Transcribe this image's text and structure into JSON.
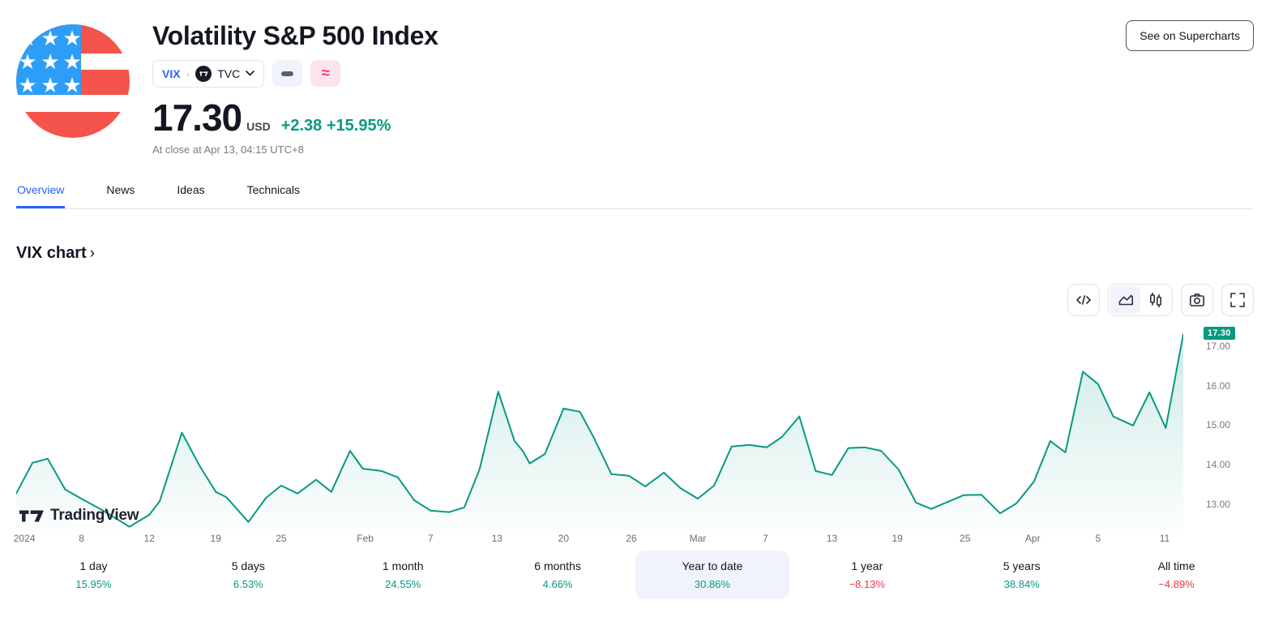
{
  "header": {
    "title": "Volatility S&P 500 Index",
    "symbol": "VIX",
    "separator": "·",
    "exchange": "TVC",
    "price": "17.30",
    "currency": "USD",
    "change": "+2.38",
    "change_pct": "+15.95%",
    "status_line": "At close at Apr 13, 04:15 UTC+8",
    "supercharts_button": "See on Supercharts"
  },
  "icons": {
    "logo": "us-flag-icon",
    "exchange_logo": "tradingview-logo-icon",
    "market_status": "minus-icon",
    "delayed_data": "approx-icon",
    "approx_glyph": "≈",
    "toolbar": [
      "code-icon",
      "area-chart-icon",
      "candlestick-icon",
      "camera-icon",
      "fullscreen-icon"
    ]
  },
  "tabs": [
    {
      "label": "Overview",
      "active": true
    },
    {
      "label": "News",
      "active": false
    },
    {
      "label": "Ideas",
      "active": false
    },
    {
      "label": "Technicals",
      "active": false
    }
  ],
  "section": {
    "title": "VIX chart",
    "chevron": "›"
  },
  "watermark": {
    "text": "TradingView"
  },
  "ranges": [
    {
      "label": "1 day",
      "change": "15.95%",
      "direction": "up",
      "selected": false
    },
    {
      "label": "5 days",
      "change": "6.53%",
      "direction": "up",
      "selected": false
    },
    {
      "label": "1 month",
      "change": "24.55%",
      "direction": "up",
      "selected": false
    },
    {
      "label": "6 months",
      "change": "4.66%",
      "direction": "up",
      "selected": false
    },
    {
      "label": "Year to date",
      "change": "30.86%",
      "direction": "up",
      "selected": true
    },
    {
      "label": "1 year",
      "change": "−8.13%",
      "direction": "down",
      "selected": false
    },
    {
      "label": "5 years",
      "change": "38.84%",
      "direction": "up",
      "selected": false
    },
    {
      "label": "All time",
      "change": "−4.89%",
      "direction": "down",
      "selected": false
    }
  ],
  "colors": {
    "accent_blue": "#2962ff",
    "up_green": "#089981",
    "down_red": "#f23645",
    "text_primary": "#131722",
    "text_secondary": "#787b86",
    "border": "#e0e3eb",
    "chip_bg": "#f0f3fa",
    "pink_bg": "#fde3ec",
    "pink_icon": "#f23674"
  },
  "chart_data": {
    "type": "area",
    "title": "VIX chart",
    "symbol": "VIX",
    "last_price": 17.3,
    "last_price_label": "17.30",
    "line_color": "#089981",
    "fill_top": "rgba(8,153,129,0.20)",
    "fill_bottom": "rgba(8,153,129,0.01)",
    "grid": false,
    "y_domain": [
      12.32,
      17.51
    ],
    "y_ticks": [
      {
        "label": "17.00",
        "value": 17.0
      },
      {
        "label": "16.00",
        "value": 16.0
      },
      {
        "label": "15.00",
        "value": 15.0
      },
      {
        "label": "14.00",
        "value": 14.0
      },
      {
        "label": "13.00",
        "value": 13.0
      }
    ],
    "x_ticks": [
      {
        "label": "2024",
        "pos": 0.7
      },
      {
        "label": "8",
        "pos": 5.6
      },
      {
        "label": "12",
        "pos": 11.4
      },
      {
        "label": "19",
        "pos": 17.1
      },
      {
        "label": "25",
        "pos": 22.7
      },
      {
        "label": "Feb",
        "pos": 29.9
      },
      {
        "label": "7",
        "pos": 35.5
      },
      {
        "label": "13",
        "pos": 41.2
      },
      {
        "label": "20",
        "pos": 46.9
      },
      {
        "label": "26",
        "pos": 52.7
      },
      {
        "label": "Mar",
        "pos": 58.4
      },
      {
        "label": "7",
        "pos": 64.2
      },
      {
        "label": "13",
        "pos": 69.9
      },
      {
        "label": "19",
        "pos": 75.5
      },
      {
        "label": "25",
        "pos": 81.3
      },
      {
        "label": "Apr",
        "pos": 87.1
      },
      {
        "label": "5",
        "pos": 92.7
      },
      {
        "label": "11",
        "pos": 98.4
      }
    ],
    "points": [
      [
        0,
        13.27
      ],
      [
        1.4,
        14.05
      ],
      [
        2.7,
        14.15
      ],
      [
        4.2,
        13.37
      ],
      [
        5.7,
        13.12
      ],
      [
        7.2,
        12.88
      ],
      [
        8.6,
        12.63
      ],
      [
        9.7,
        12.43
      ],
      [
        11.4,
        12.73
      ],
      [
        12.3,
        13.08
      ],
      [
        14.2,
        14.81
      ],
      [
        15.7,
        13.98
      ],
      [
        17.1,
        13.31
      ],
      [
        18.0,
        13.18
      ],
      [
        19.9,
        12.55
      ],
      [
        21.4,
        13.16
      ],
      [
        22.7,
        13.47
      ],
      [
        24.1,
        13.27
      ],
      [
        25.7,
        13.62
      ],
      [
        27.0,
        13.31
      ],
      [
        28.6,
        14.35
      ],
      [
        29.7,
        13.9
      ],
      [
        31.3,
        13.84
      ],
      [
        32.7,
        13.68
      ],
      [
        34.1,
        13.1
      ],
      [
        35.5,
        12.84
      ],
      [
        37.1,
        12.8
      ],
      [
        38.4,
        12.92
      ],
      [
        39.7,
        13.88
      ],
      [
        41.3,
        15.85
      ],
      [
        42.7,
        14.6
      ],
      [
        43.4,
        14.35
      ],
      [
        44.0,
        14.03
      ],
      [
        45.3,
        14.27
      ],
      [
        46.9,
        15.42
      ],
      [
        48.3,
        15.34
      ],
      [
        49.5,
        14.68
      ],
      [
        51.0,
        13.76
      ],
      [
        52.5,
        13.72
      ],
      [
        53.9,
        13.45
      ],
      [
        55.5,
        13.8
      ],
      [
        56.9,
        13.41
      ],
      [
        58.4,
        13.14
      ],
      [
        59.8,
        13.47
      ],
      [
        61.3,
        14.46
      ],
      [
        62.8,
        14.5
      ],
      [
        64.3,
        14.44
      ],
      [
        65.6,
        14.7
      ],
      [
        67.1,
        15.22
      ],
      [
        68.5,
        13.84
      ],
      [
        69.9,
        13.74
      ],
      [
        71.3,
        14.42
      ],
      [
        72.7,
        14.44
      ],
      [
        74.1,
        14.35
      ],
      [
        75.6,
        13.88
      ],
      [
        77.1,
        13.04
      ],
      [
        78.4,
        12.88
      ],
      [
        81.2,
        13.23
      ],
      [
        82.7,
        13.24
      ],
      [
        84.3,
        12.77
      ],
      [
        85.7,
        13.02
      ],
      [
        87.2,
        13.57
      ],
      [
        88.6,
        14.6
      ],
      [
        89.9,
        14.31
      ],
      [
        91.4,
        16.35
      ],
      [
        92.7,
        16.04
      ],
      [
        94.0,
        15.22
      ],
      [
        95.7,
        14.99
      ],
      [
        97.1,
        15.83
      ],
      [
        98.5,
        14.93
      ],
      [
        100,
        17.3
      ]
    ]
  }
}
